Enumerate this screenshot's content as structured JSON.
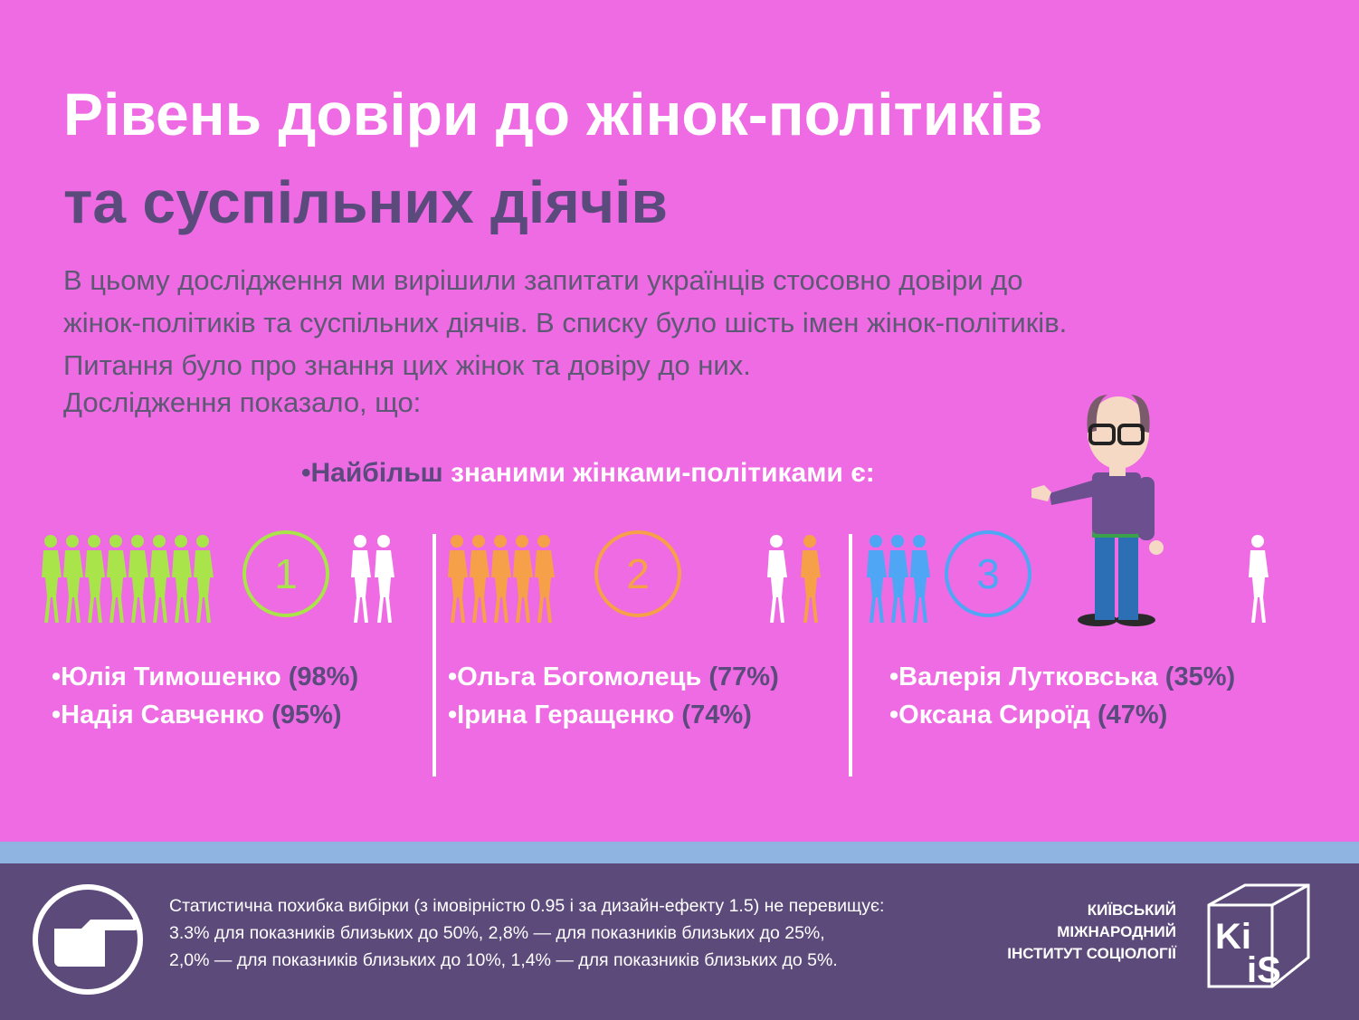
{
  "header": {
    "title_line1": "Рівень довіри до жінок-політиків",
    "title_line2": "та суспільних діячів"
  },
  "intro": [
    "В цьому дослідження ми вирішили запитати українців стосовно довіри до",
    "жінок-політиків та суспільних діячів. В списку було шість імен жінок-політиків.",
    "Питання було про знання цих жінок та довіру до них.",
    "Дослідження показало, що:"
  ],
  "subheading": {
    "lead": "•Найбільш",
    "rest": " знаними жінками-політиками є:"
  },
  "groups": [
    {
      "rank": "1",
      "people": [
        {
          "name": "•Юлія Тимошенко",
          "percent": " (98%)"
        },
        {
          "name": "•Надія Савченко",
          "percent": " (95%)"
        }
      ]
    },
    {
      "rank": "2",
      "people": [
        {
          "name": "•Ольга Богомолець",
          "percent": " (77%)"
        },
        {
          "name": "•Ірина Геращенко",
          "percent": " (74%)"
        }
      ]
    },
    {
      "rank": "3",
      "people": [
        {
          "name": "•Валерія Лутковська",
          "percent": " (35%)"
        },
        {
          "name": "•Оксана Сироїд",
          "percent": " (47%)"
        }
      ]
    }
  ],
  "footer": {
    "note": [
      "Статистична похибка вибірки (з імовірністю 0.95 і за дизайн-ефекту 1.5) не перевищує:",
      "3.3% для показників близьких до 50%, 2,8% — для показників близьких до 25%,",
      "2,0% — для показників близьких до 10%, 1,4% — для показників близьких до 5%."
    ],
    "org": [
      "КИЇВСЬКИЙ",
      "МІЖНАРОДНИЙ",
      "ІНСТИТУТ СОЦІОЛОГІЇ"
    ],
    "logo": [
      "Ki",
      "iS"
    ]
  }
}
